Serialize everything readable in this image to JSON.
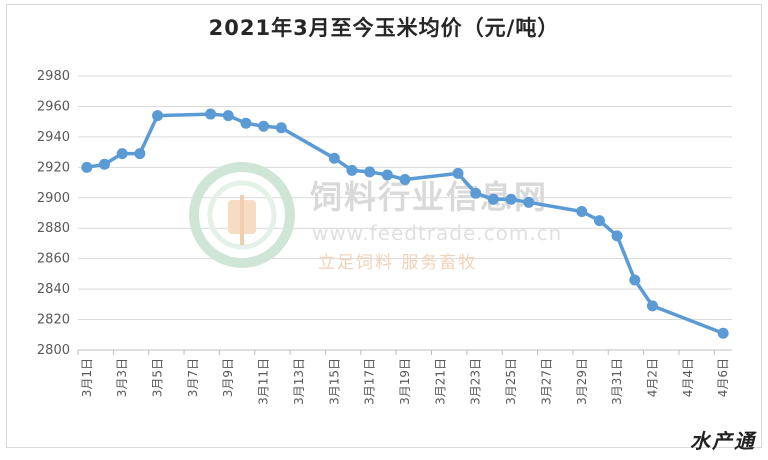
{
  "chart_data": {
    "type": "line",
    "title": "2021年3月至今玉米均价（元/吨）",
    "xlabel": "",
    "ylabel": "",
    "ylim": [
      2800,
      2980
    ],
    "yticks": [
      2800,
      2820,
      2840,
      2860,
      2880,
      2900,
      2920,
      2940,
      2960,
      2980
    ],
    "grid": true,
    "legend": "none",
    "line_color": "#5b9bd5",
    "x_tick_labels": [
      "3月1日",
      "3月3日",
      "3月5日",
      "3月7日",
      "3月9日",
      "3月11日",
      "3月13日",
      "3月15日",
      "3月17日",
      "3月19日",
      "3月21日",
      "3月23日",
      "3月25日",
      "3月27日",
      "3月29日",
      "3月31日",
      "4月2日",
      "4月4日",
      "4月6日"
    ],
    "x_tick_days": [
      0,
      2,
      4,
      6,
      8,
      10,
      12,
      14,
      16,
      18,
      20,
      22,
      24,
      26,
      28,
      30,
      32,
      34,
      36
    ],
    "points": [
      {
        "date": "3月1日",
        "day": 0,
        "value": 2920
      },
      {
        "date": "3月2日",
        "day": 1,
        "value": 2922
      },
      {
        "date": "3月3日",
        "day": 2,
        "value": 2929
      },
      {
        "date": "3月4日",
        "day": 3,
        "value": 2929
      },
      {
        "date": "3月5日",
        "day": 4,
        "value": 2954
      },
      {
        "date": "3月8日",
        "day": 7,
        "value": 2955
      },
      {
        "date": "3月9日",
        "day": 8,
        "value": 2954
      },
      {
        "date": "3月10日",
        "day": 9,
        "value": 2949
      },
      {
        "date": "3月11日",
        "day": 10,
        "value": 2947
      },
      {
        "date": "3月12日",
        "day": 11,
        "value": 2946
      },
      {
        "date": "3月15日",
        "day": 14,
        "value": 2926
      },
      {
        "date": "3月16日",
        "day": 15,
        "value": 2918
      },
      {
        "date": "3月17日",
        "day": 16,
        "value": 2917
      },
      {
        "date": "3月18日",
        "day": 17,
        "value": 2915
      },
      {
        "date": "3月19日",
        "day": 18,
        "value": 2912
      },
      {
        "date": "3月22日",
        "day": 21,
        "value": 2916
      },
      {
        "date": "3月23日",
        "day": 22,
        "value": 2903
      },
      {
        "date": "3月24日",
        "day": 23,
        "value": 2899
      },
      {
        "date": "3月25日",
        "day": 24,
        "value": 2899
      },
      {
        "date": "3月26日",
        "day": 25,
        "value": 2897
      },
      {
        "date": "3月29日",
        "day": 28,
        "value": 2891
      },
      {
        "date": "3月30日",
        "day": 29,
        "value": 2885
      },
      {
        "date": "3月31日",
        "day": 30,
        "value": 2875
      },
      {
        "date": "4月1日",
        "day": 31,
        "value": 2846
      },
      {
        "date": "4月2日",
        "day": 32,
        "value": 2829
      },
      {
        "date": "4月6日",
        "day": 36,
        "value": 2811
      }
    ]
  },
  "watermark": {
    "site_name": "饲料行业信息网",
    "url": "www.feedtrade.com.cn",
    "slogan": "立足饲料  服务畜牧"
  },
  "corner_logo": "水产通"
}
